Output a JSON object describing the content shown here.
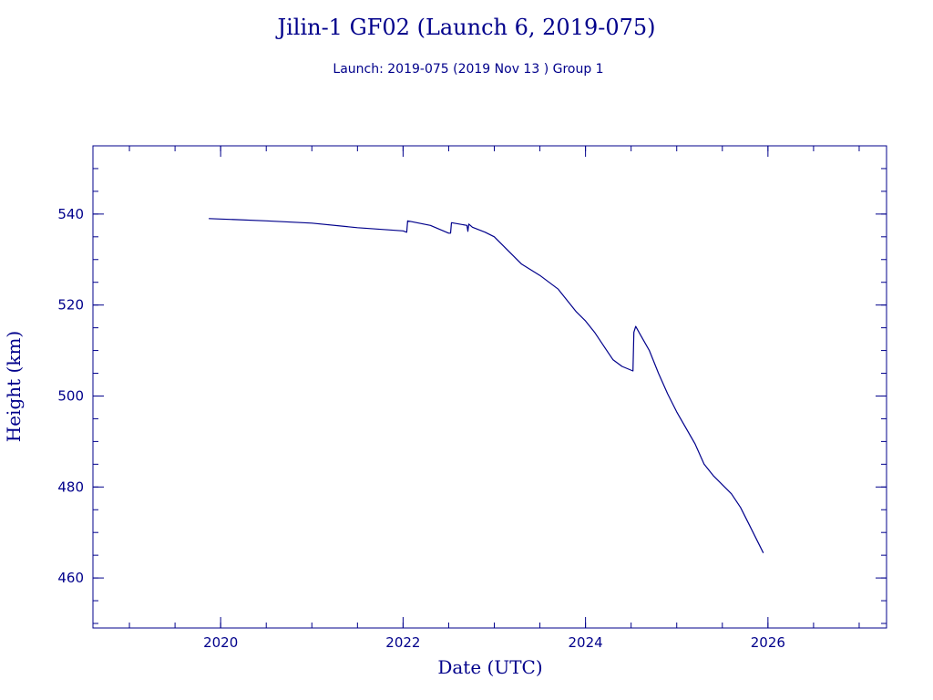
{
  "chart_data": {
    "type": "line",
    "title": "Jilin-1 GF02 (Launch 6, 2019-075)",
    "subtitle": "Launch: 2019-075  (2019 Nov 13 )  Group 1",
    "xlabel": "Date (UTC)",
    "ylabel": "Height (km)",
    "xlim": [
      2018.6,
      2027.3
    ],
    "ylim": [
      449,
      555
    ],
    "xticks": [
      2020,
      2022,
      2024,
      2026
    ],
    "xtick_labels": [
      "2020",
      "2022",
      "2024",
      "2026"
    ],
    "yticks": [
      460,
      480,
      500,
      520,
      540
    ],
    "ytick_labels": [
      "460",
      "480",
      "500",
      "520",
      "540"
    ],
    "grid": false,
    "color": "#00008b",
    "series": [
      {
        "x": [
          2019.87,
          2020.5,
          2021.0,
          2021.5,
          2022.0,
          2022.04,
          2022.05,
          2022.3,
          2022.5,
          2022.52,
          2022.53,
          2022.7,
          2022.71,
          2022.72,
          2022.76,
          2022.9,
          2023.0,
          2023.1,
          2023.2,
          2023.3,
          2023.5,
          2023.7,
          2023.8,
          2023.9,
          2024.0,
          2024.1,
          2024.2,
          2024.3,
          2024.4,
          2024.52,
          2024.53,
          2024.55,
          2024.6,
          2024.7,
          2024.8,
          2024.9,
          2025.0,
          2025.2,
          2025.3,
          2025.4,
          2025.5,
          2025.6,
          2025.7,
          2025.8,
          2025.9,
          2025.95
        ],
        "y": [
          539,
          538.5,
          538,
          537,
          536.3,
          536,
          538.5,
          537.5,
          535.8,
          535.8,
          538.1,
          537.5,
          536.2,
          537.8,
          537.1,
          536,
          535,
          533,
          531,
          529,
          526.5,
          523.5,
          521,
          518.5,
          516.5,
          514,
          511,
          508,
          506.5,
          505.5,
          514,
          515.3,
          513.5,
          510,
          505,
          500.5,
          496.5,
          489.5,
          485,
          482.5,
          480.5,
          478.5,
          475.5,
          471.5,
          467.5,
          465.5
        ]
      }
    ]
  }
}
